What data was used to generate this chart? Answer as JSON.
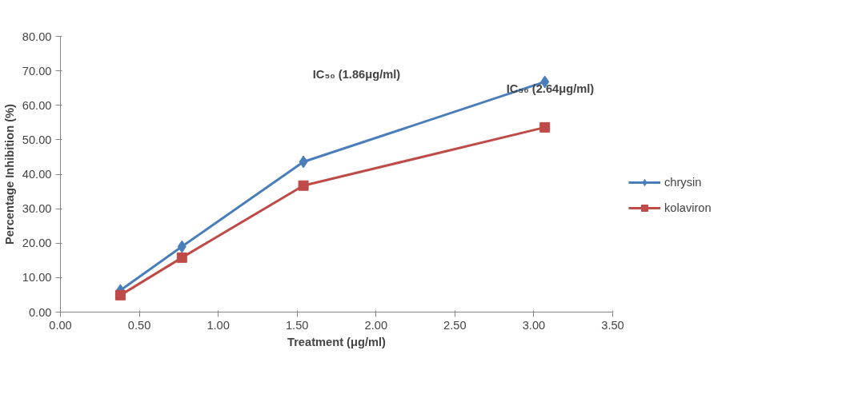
{
  "chart_data": {
    "type": "line",
    "xlabel": "Treatment (μg/ml)",
    "ylabel": "Percentage Inhibition (%)",
    "x": [
      0.38,
      0.77,
      1.54,
      3.07
    ],
    "series": [
      {
        "name": "chrysin",
        "color": "#4a7ebb",
        "marker": "diamond",
        "values": [
          6.3,
          19.0,
          43.6,
          66.8
        ]
      },
      {
        "name": "kolaviron",
        "color": "#be4b48",
        "marker": "square",
        "values": [
          4.9,
          15.8,
          36.7,
          53.6
        ]
      }
    ],
    "xlim": [
      0,
      3.5
    ],
    "xticks": [
      {
        "value": 0,
        "label": "0.00"
      },
      {
        "value": 0.5,
        "label": "0.50"
      },
      {
        "value": 1,
        "label": "1.00"
      },
      {
        "value": 1.5,
        "label": "1.50"
      },
      {
        "value": 2,
        "label": "2.00"
      },
      {
        "value": 2.5,
        "label": "2.50"
      },
      {
        "value": 3,
        "label": "3.00"
      },
      {
        "value": 3.5,
        "label": "3.50"
      }
    ],
    "ylim": [
      0,
      80
    ],
    "yticks": [
      {
        "value": 0,
        "label": "0.00"
      },
      {
        "value": 10,
        "label": "10.00"
      },
      {
        "value": 20,
        "label": "20.00"
      },
      {
        "value": 30,
        "label": "30.00"
      },
      {
        "value": 40,
        "label": "40.00"
      },
      {
        "value": 50,
        "label": "50.00"
      },
      {
        "value": 60,
        "label": "60.00"
      },
      {
        "value": 70,
        "label": "70.00"
      },
      {
        "value": 80,
        "label": "80.00"
      }
    ],
    "annotations": [
      "IC₅₀ (1.86μg/ml)",
      "IC₅₀ (2.64μg/ml)"
    ],
    "grid": false,
    "legend": "right",
    "line_style": "solid"
  }
}
